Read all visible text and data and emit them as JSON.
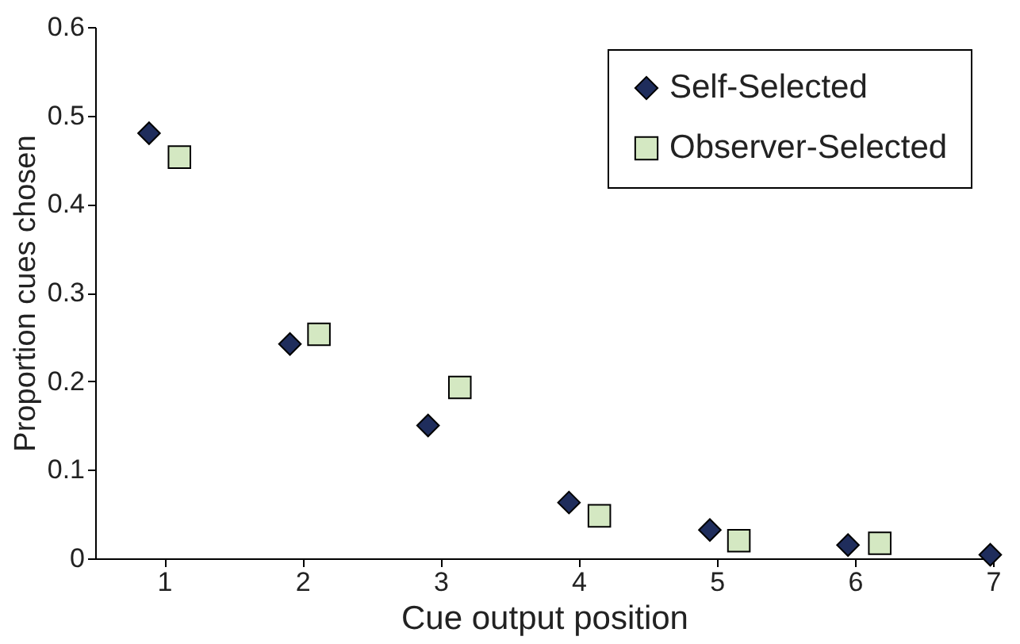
{
  "chart_data": {
    "type": "scatter",
    "xlabel": "Cue output position",
    "ylabel": "Proportion cues chosen",
    "xlim": [
      0.5,
      7
    ],
    "xticks": [
      1,
      2,
      3,
      4,
      5,
      6,
      7
    ],
    "ylim": [
      0,
      0.6
    ],
    "yticks": [
      0,
      0.1,
      0.2,
      0.3,
      0.4,
      0.5,
      0.6
    ],
    "grid": false,
    "legend": "top right",
    "series": [
      {
        "name": "Self-Selected",
        "color": "#1f2d5c",
        "marker": "diamond",
        "x": [
          0.89,
          1.91,
          2.91,
          3.93,
          4.95,
          5.95,
          6.98
        ],
        "values": [
          0.48,
          0.242,
          0.15,
          0.063,
          0.032,
          0.015,
          0.004
        ]
      },
      {
        "name": "Observer-Selected",
        "color": "#d4e8c2",
        "marker": "square",
        "x": [
          1.11,
          2.12,
          3.14,
          4.15,
          5.16,
          6.18
        ],
        "values": [
          0.453,
          0.253,
          0.193,
          0.048,
          0.02,
          0.017
        ]
      }
    ]
  }
}
